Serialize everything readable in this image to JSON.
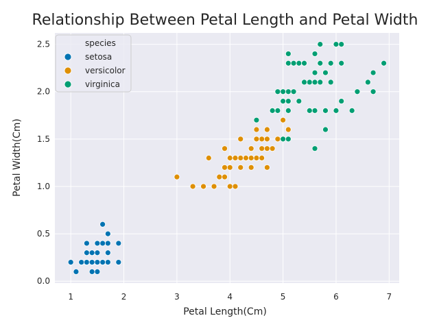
{
  "chart_data": {
    "type": "scatter",
    "title": "Relationship Between Petal Length and Petal Width",
    "xlabel": "Petal Length(Cm)",
    "ylabel": "Petal Width(Cm)",
    "xlim": [
      0.7,
      7.19
    ],
    "ylim": [
      -0.02,
      2.62
    ],
    "xticks": [
      1,
      2,
      3,
      4,
      5,
      6,
      7
    ],
    "yticks": [
      0.0,
      0.5,
      1.0,
      1.5,
      2.0,
      2.5
    ],
    "grid": true,
    "background_color": "#EAEAF2",
    "legend": {
      "title": "species",
      "placement": "top-left"
    },
    "series": [
      {
        "name": "setosa",
        "color": "#0173B2",
        "points": [
          [
            1.4,
            0.2
          ],
          [
            1.4,
            0.2
          ],
          [
            1.3,
            0.2
          ],
          [
            1.5,
            0.2
          ],
          [
            1.4,
            0.2
          ],
          [
            1.7,
            0.4
          ],
          [
            1.4,
            0.3
          ],
          [
            1.5,
            0.2
          ],
          [
            1.4,
            0.2
          ],
          [
            1.5,
            0.1
          ],
          [
            1.5,
            0.2
          ],
          [
            1.6,
            0.2
          ],
          [
            1.4,
            0.1
          ],
          [
            1.1,
            0.1
          ],
          [
            1.2,
            0.2
          ],
          [
            1.5,
            0.4
          ],
          [
            1.3,
            0.4
          ],
          [
            1.4,
            0.3
          ],
          [
            1.7,
            0.3
          ],
          [
            1.5,
            0.3
          ],
          [
            1.7,
            0.2
          ],
          [
            1.5,
            0.4
          ],
          [
            1.0,
            0.2
          ],
          [
            1.7,
            0.5
          ],
          [
            1.9,
            0.2
          ],
          [
            1.6,
            0.2
          ],
          [
            1.6,
            0.4
          ],
          [
            1.5,
            0.2
          ],
          [
            1.4,
            0.2
          ],
          [
            1.6,
            0.2
          ],
          [
            1.6,
            0.2
          ],
          [
            1.5,
            0.4
          ],
          [
            1.5,
            0.1
          ],
          [
            1.4,
            0.2
          ],
          [
            1.5,
            0.2
          ],
          [
            1.2,
            0.2
          ],
          [
            1.3,
            0.2
          ],
          [
            1.4,
            0.1
          ],
          [
            1.3,
            0.2
          ],
          [
            1.5,
            0.2
          ],
          [
            1.3,
            0.3
          ],
          [
            1.3,
            0.3
          ],
          [
            1.3,
            0.2
          ],
          [
            1.6,
            0.6
          ],
          [
            1.9,
            0.4
          ],
          [
            1.4,
            0.3
          ],
          [
            1.6,
            0.2
          ],
          [
            1.4,
            0.2
          ],
          [
            1.5,
            0.2
          ],
          [
            1.4,
            0.2
          ]
        ]
      },
      {
        "name": "versicolor",
        "color": "#DE8F05",
        "points": [
          [
            4.7,
            1.4
          ],
          [
            4.5,
            1.5
          ],
          [
            4.9,
            1.5
          ],
          [
            4.0,
            1.3
          ],
          [
            4.6,
            1.5
          ],
          [
            4.5,
            1.3
          ],
          [
            4.7,
            1.6
          ],
          [
            3.3,
            1.0
          ],
          [
            4.6,
            1.3
          ],
          [
            3.9,
            1.4
          ],
          [
            3.5,
            1.0
          ],
          [
            4.2,
            1.5
          ],
          [
            4.0,
            1.0
          ],
          [
            4.7,
            1.4
          ],
          [
            3.6,
            1.3
          ],
          [
            4.4,
            1.4
          ],
          [
            4.5,
            1.5
          ],
          [
            4.1,
            1.0
          ],
          [
            4.5,
            1.5
          ],
          [
            3.9,
            1.1
          ],
          [
            4.8,
            1.8
          ],
          [
            4.0,
            1.3
          ],
          [
            4.9,
            1.5
          ],
          [
            4.7,
            1.2
          ],
          [
            4.3,
            1.3
          ],
          [
            4.4,
            1.4
          ],
          [
            4.8,
            1.4
          ],
          [
            5.0,
            1.7
          ],
          [
            4.5,
            1.5
          ],
          [
            3.5,
            1.0
          ],
          [
            3.8,
            1.1
          ],
          [
            3.7,
            1.0
          ],
          [
            3.9,
            1.2
          ],
          [
            5.1,
            1.6
          ],
          [
            4.5,
            1.5
          ],
          [
            4.5,
            1.6
          ],
          [
            4.7,
            1.5
          ],
          [
            4.4,
            1.3
          ],
          [
            4.1,
            1.3
          ],
          [
            4.0,
            1.3
          ],
          [
            4.4,
            1.2
          ],
          [
            4.6,
            1.4
          ],
          [
            4.0,
            1.2
          ],
          [
            3.3,
            1.0
          ],
          [
            4.2,
            1.3
          ],
          [
            4.2,
            1.2
          ],
          [
            4.2,
            1.3
          ],
          [
            4.3,
            1.3
          ],
          [
            3.0,
            1.1
          ],
          [
            4.1,
            1.3
          ]
        ]
      },
      {
        "name": "virginica",
        "color": "#029E73",
        "points": [
          [
            6.0,
            2.5
          ],
          [
            5.1,
            1.9
          ],
          [
            5.9,
            2.1
          ],
          [
            5.6,
            1.8
          ],
          [
            5.8,
            2.2
          ],
          [
            6.6,
            2.1
          ],
          [
            4.5,
            1.7
          ],
          [
            6.3,
            1.8
          ],
          [
            5.8,
            1.8
          ],
          [
            6.1,
            2.5
          ],
          [
            5.1,
            2.0
          ],
          [
            5.3,
            1.9
          ],
          [
            5.5,
            2.1
          ],
          [
            5.0,
            2.0
          ],
          [
            5.1,
            2.4
          ],
          [
            5.3,
            2.3
          ],
          [
            5.5,
            1.8
          ],
          [
            6.7,
            2.2
          ],
          [
            6.9,
            2.3
          ],
          [
            5.0,
            1.5
          ],
          [
            5.7,
            2.3
          ],
          [
            4.9,
            2.0
          ],
          [
            6.7,
            2.0
          ],
          [
            4.9,
            1.8
          ],
          [
            5.7,
            2.1
          ],
          [
            6.0,
            1.8
          ],
          [
            4.8,
            1.8
          ],
          [
            4.9,
            1.8
          ],
          [
            5.6,
            2.1
          ],
          [
            5.8,
            1.6
          ],
          [
            6.1,
            1.9
          ],
          [
            6.4,
            2.0
          ],
          [
            5.6,
            2.2
          ],
          [
            5.1,
            1.5
          ],
          [
            5.6,
            1.4
          ],
          [
            6.1,
            2.3
          ],
          [
            5.6,
            2.4
          ],
          [
            5.5,
            1.8
          ],
          [
            4.8,
            1.8
          ],
          [
            5.4,
            2.1
          ],
          [
            5.6,
            2.4
          ],
          [
            5.1,
            2.3
          ],
          [
            5.1,
            1.9
          ],
          [
            5.9,
            2.3
          ],
          [
            5.7,
            2.5
          ],
          [
            5.2,
            2.3
          ],
          [
            5.0,
            1.9
          ],
          [
            5.2,
            2.0
          ],
          [
            5.4,
            2.3
          ],
          [
            5.1,
            1.8
          ]
        ]
      }
    ]
  }
}
